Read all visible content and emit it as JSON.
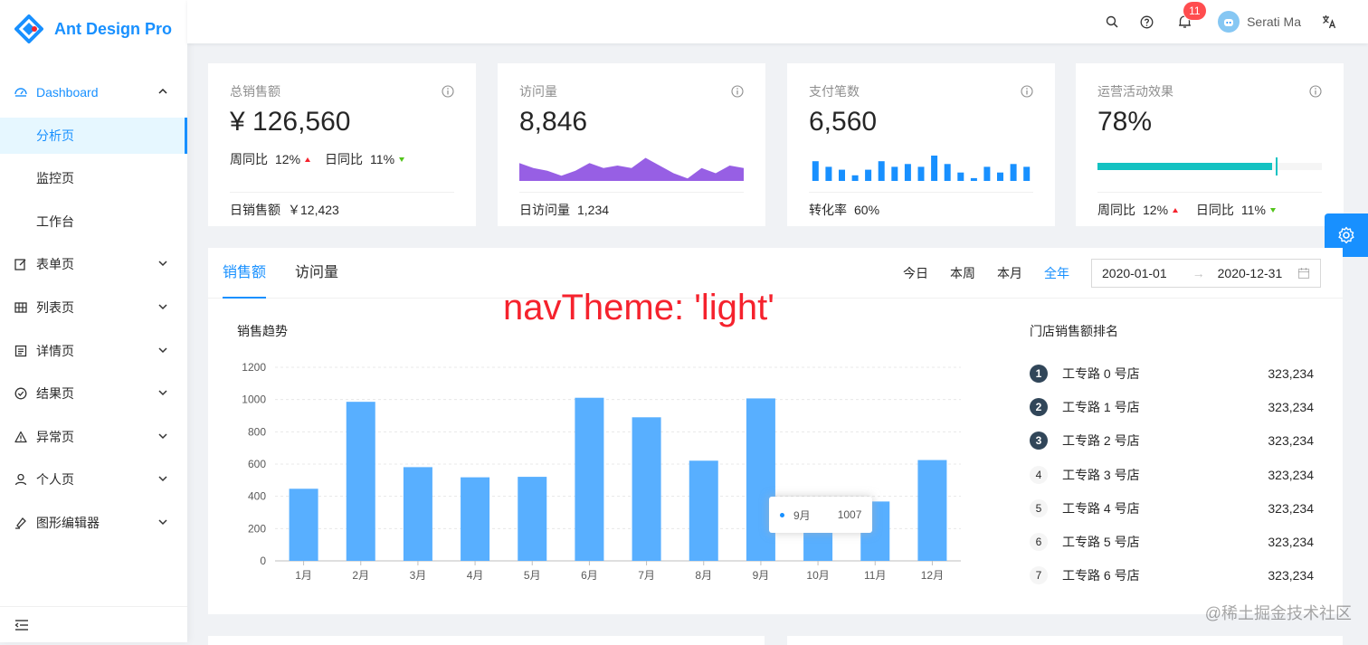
{
  "app": {
    "title": "Ant Design Pro"
  },
  "sidebar": {
    "items": [
      {
        "label": "Dashboard",
        "icon": "dashboard-icon"
      },
      {
        "label": "表单页",
        "icon": "form-icon"
      },
      {
        "label": "列表页",
        "icon": "table-icon"
      },
      {
        "label": "详情页",
        "icon": "profile-icon"
      },
      {
        "label": "结果页",
        "icon": "check-circle-icon"
      },
      {
        "label": "异常页",
        "icon": "warning-icon"
      },
      {
        "label": "个人页",
        "icon": "user-icon"
      },
      {
        "label": "图形编辑器",
        "icon": "highlight-icon"
      }
    ],
    "dashboard_children": [
      {
        "label": "分析页",
        "active": true
      },
      {
        "label": "监控页"
      },
      {
        "label": "工作台"
      }
    ]
  },
  "header": {
    "notification_count": "11",
    "user_name": "Serati Ma"
  },
  "kpis": [
    {
      "title": "总销售额",
      "value": "¥ 126,560",
      "week_label": "周同比",
      "week_value": "12%",
      "day_label": "日同比",
      "day_value": "11%",
      "footer_label": "日销售额",
      "footer_value": "￥12,423"
    },
    {
      "title": "访问量",
      "value": "8,846",
      "footer_label": "日访问量",
      "footer_value": "1,234"
    },
    {
      "title": "支付笔数",
      "value": "6,560",
      "footer_label": "转化率",
      "footer_value": "60%"
    },
    {
      "title": "运营活动效果",
      "value": "78%",
      "progress": 0.78,
      "week_label": "周同比",
      "week_value": "12%",
      "day_label": "日同比",
      "day_value": "11%"
    }
  ],
  "sales_card": {
    "tabs": [
      "销售额",
      "访问量"
    ],
    "quick_dates": [
      "今日",
      "本周",
      "本月",
      "全年"
    ],
    "range_start": "2020-01-01",
    "range_end": "2020-12-31",
    "chart_title": "销售趋势",
    "rank_title": "门店销售额排名",
    "rank": [
      {
        "num": "1",
        "name": "工专路 0 号店",
        "value": "323,234"
      },
      {
        "num": "2",
        "name": "工专路 1 号店",
        "value": "323,234"
      },
      {
        "num": "3",
        "name": "工专路 2 号店",
        "value": "323,234"
      },
      {
        "num": "4",
        "name": "工专路 3 号店",
        "value": "323,234"
      },
      {
        "num": "5",
        "name": "工专路 4 号店",
        "value": "323,234"
      },
      {
        "num": "6",
        "name": "工专路 5 号店",
        "value": "323,234"
      },
      {
        "num": "7",
        "name": "工专路 6 号店",
        "value": "323,234"
      }
    ],
    "tooltip": {
      "label": "9月",
      "value": "1007"
    }
  },
  "overlay_text": "navTheme: 'light'",
  "watermark": "@稀土掘金技术社区",
  "colors": {
    "primary": "#1890ff",
    "bar": "#58afff",
    "area": "#975fe4",
    "progress": "#13c2c2"
  },
  "chart_data": {
    "type": "bar",
    "categories": [
      "1月",
      "2月",
      "3月",
      "4月",
      "5月",
      "6月",
      "7月",
      "8月",
      "9月",
      "10月",
      "11月",
      "12月"
    ],
    "values": [
      447,
      986,
      581,
      518,
      521,
      1011,
      890,
      621,
      1007,
      262,
      368,
      625
    ],
    "ylim": [
      0,
      1200
    ],
    "yticks": [
      0,
      200,
      400,
      600,
      800,
      1000,
      1200
    ]
  },
  "mini_area_data": [
    7,
    5,
    4,
    2,
    4,
    7,
    5,
    6,
    5,
    9,
    6,
    3,
    1,
    5,
    3,
    6,
    5
  ],
  "mini_bar_data": [
    7,
    5,
    4,
    2,
    4,
    7,
    5,
    6,
    5,
    9,
    6,
    3,
    1,
    5,
    3,
    6,
    5
  ]
}
